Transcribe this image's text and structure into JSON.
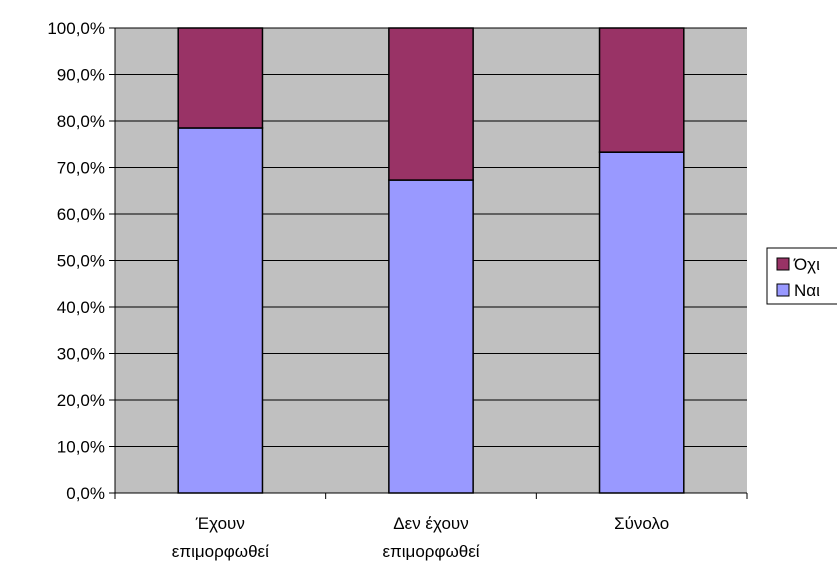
{
  "chart_data": {
    "type": "bar",
    "stacked": true,
    "categories": [
      [
        "Έχουν",
        "επιμορφωθεί"
      ],
      [
        "Δεν έχουν",
        "επιμορφωθεί"
      ],
      [
        "Σύνολο"
      ]
    ],
    "series": [
      {
        "name": "Ναι",
        "values": [
          78.5,
          67.3,
          73.3
        ],
        "color": "#9999ff"
      },
      {
        "name": "Όχι",
        "values": [
          21.5,
          32.7,
          26.7
        ],
        "color": "#993366"
      }
    ],
    "ylim": [
      0,
      100
    ],
    "yticks": [
      "0,0%",
      "10,0%",
      "20,0%",
      "30,0%",
      "40,0%",
      "50,0%",
      "60,0%",
      "70,0%",
      "80,0%",
      "90,0%",
      "100,0%"
    ],
    "grid": true,
    "plot_background": "#c0c0c0",
    "legend_position": "right",
    "legend_order": [
      "Όχι",
      "Ναι"
    ]
  }
}
